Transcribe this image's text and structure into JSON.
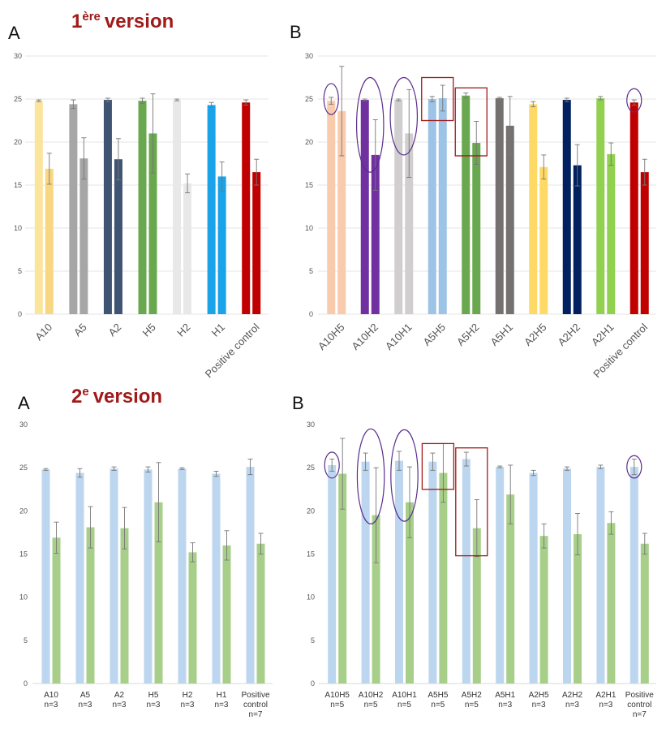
{
  "headings": {
    "v1": {
      "main": "1",
      "sup": "ère",
      "rest": "version"
    },
    "v2": {
      "main": "2",
      "sup": "e",
      "rest": "version"
    }
  },
  "colors": {
    "v2_first_bar": "#bcd6ef",
    "v2_second_bar": "#a8cf8a",
    "grid": "#e6e6e6",
    "errorbar": "#777777",
    "circle": "#5a2d8c",
    "rect": "#a01a1a",
    "heading": "#a01a1a"
  },
  "chart_data": [
    {
      "id": "v1A",
      "panel": "A",
      "type": "bar",
      "ylim": [
        0,
        30
      ],
      "yticks": [
        0,
        5,
        10,
        15,
        20,
        25,
        30
      ],
      "grid": true,
      "label_style": "rotated",
      "categories": [
        "A10",
        "A5",
        "A2",
        "H5",
        "H2",
        "H1",
        "Positive control"
      ],
      "series": [
        {
          "values": [
            24.8,
            24.4,
            24.9,
            24.8,
            24.9,
            24.3,
            24.6
          ],
          "errors": [
            0.1,
            0.5,
            0.2,
            0.3,
            0.1,
            0.3,
            0.3
          ]
        },
        {
          "values": [
            16.9,
            18.1,
            18.0,
            21.0,
            15.2,
            16.0,
            16.5
          ],
          "errors": [
            1.8,
            2.4,
            2.4,
            4.6,
            1.1,
            1.7,
            1.5
          ]
        }
      ],
      "bar_colors": [
        [
          "#fbe59c",
          "#f7d782"
        ],
        [
          "#a6a6a6",
          "#a6a6a6"
        ],
        [
          "#3f5372",
          "#3f5372"
        ],
        [
          "#6aa84f",
          "#6aa84f"
        ],
        [
          "#e8e8e8",
          "#e8e8e8"
        ],
        [
          "#1aa3e8",
          "#1aa3e8"
        ],
        [
          "#c00000",
          "#c00000"
        ]
      ],
      "annotations": []
    },
    {
      "id": "v1B",
      "panel": "B",
      "type": "bar",
      "ylim": [
        0,
        30
      ],
      "yticks": [
        0,
        5,
        10,
        15,
        20,
        25,
        30
      ],
      "grid": true,
      "label_style": "rotated",
      "categories": [
        "A10H5",
        "A10H2",
        "A10H1",
        "A5H5",
        "A5H2",
        "A5H1",
        "A2H5",
        "A2H2",
        "A2H1",
        "Positive control"
      ],
      "series": [
        {
          "values": [
            24.8,
            24.9,
            24.9,
            25.0,
            25.4,
            25.1,
            24.4,
            24.9,
            25.1,
            24.6
          ],
          "errors": [
            0.4,
            0.1,
            0.1,
            0.3,
            0.3,
            0.1,
            0.3,
            0.2,
            0.2,
            0.3
          ]
        },
        {
          "values": [
            23.6,
            18.5,
            21.0,
            25.1,
            19.9,
            21.9,
            17.1,
            17.3,
            18.6,
            16.5
          ],
          "errors": [
            5.2,
            4.1,
            5.1,
            1.5,
            2.5,
            3.4,
            1.4,
            2.4,
            1.3,
            1.5
          ]
        }
      ],
      "bar_colors": [
        [
          "#f8cbad",
          "#f8cbad"
        ],
        [
          "#7030a0",
          "#7030a0"
        ],
        [
          "#d0cece",
          "#d0cece"
        ],
        [
          "#9dc3e6",
          "#9dc3e6"
        ],
        [
          "#6aa84f",
          "#6aa84f"
        ],
        [
          "#767171",
          "#767171"
        ],
        [
          "#ffd966",
          "#ffd966"
        ],
        [
          "#002060",
          "#002060"
        ],
        [
          "#92d050",
          "#92d050"
        ],
        [
          "#c00000",
          "#c00000"
        ]
      ],
      "annotations": [
        {
          "shape": "circle",
          "category": 0,
          "bar": "first",
          "y_low": 23.2,
          "y_high": 26.8,
          "scale": 0.9
        },
        {
          "shape": "circle",
          "category": 1,
          "bar": "pair",
          "y_low": 16.5,
          "y_high": 27.5,
          "scale": 1.0
        },
        {
          "shape": "circle",
          "category": 2,
          "bar": "pair",
          "y_low": 18.5,
          "y_high": 27.5,
          "scale": 1.0
        },
        {
          "shape": "rect",
          "category": 3,
          "bar": "pair",
          "y_low": 22.5,
          "y_high": 27.5
        },
        {
          "shape": "rect",
          "category": 4,
          "bar": "pair",
          "y_low": 18.4,
          "y_high": 26.3
        },
        {
          "shape": "circle",
          "category": 9,
          "bar": "first",
          "y_low": 23.5,
          "y_high": 26.2,
          "scale": 0.9
        }
      ]
    },
    {
      "id": "v2A",
      "panel": "A",
      "type": "bar",
      "ylim": [
        0,
        30
      ],
      "yticks": [
        0,
        5,
        10,
        15,
        20,
        25,
        30
      ],
      "grid": false,
      "label_style": "twoline",
      "categories": [
        "A10",
        "A5",
        "A2",
        "H5",
        "H2",
        "H1",
        "Positive control"
      ],
      "category_lines": [
        [
          "A10",
          "n=3"
        ],
        [
          "A5",
          "n=3"
        ],
        [
          "A2",
          "n=3"
        ],
        [
          "H5",
          "n=3"
        ],
        [
          "H2",
          "n=3"
        ],
        [
          "H1",
          "n=3"
        ],
        [
          "Positive",
          "control",
          "n=7"
        ]
      ],
      "series": [
        {
          "values": [
            24.8,
            24.4,
            24.9,
            24.8,
            24.9,
            24.3,
            25.1
          ],
          "errors": [
            0.1,
            0.5,
            0.2,
            0.3,
            0.1,
            0.3,
            0.9
          ]
        },
        {
          "values": [
            16.9,
            18.1,
            18.0,
            21.0,
            15.2,
            16.0,
            16.2
          ],
          "errors": [
            1.8,
            2.4,
            2.4,
            4.6,
            1.1,
            1.7,
            1.2
          ]
        }
      ],
      "annotations": []
    },
    {
      "id": "v2B",
      "panel": "B",
      "type": "bar",
      "ylim": [
        0,
        30
      ],
      "yticks": [
        0,
        5,
        10,
        15,
        20,
        25,
        30
      ],
      "grid": false,
      "label_style": "twoline",
      "categories": [
        "A10H5",
        "A10H2",
        "A10H1",
        "A5H5",
        "A5H2",
        "A5H1",
        "A2H5",
        "A2H2",
        "A2H1",
        "Positive control"
      ],
      "category_lines": [
        [
          "A10H5",
          "n=5"
        ],
        [
          "A10H2",
          "n=5"
        ],
        [
          "A10H1",
          "n=5"
        ],
        [
          "A5H5",
          "n=5"
        ],
        [
          "A5H2",
          "n=5"
        ],
        [
          "A5H1",
          "n=3"
        ],
        [
          "A2H5",
          "n=3"
        ],
        [
          "A2H2",
          "n=3"
        ],
        [
          "A2H1",
          "n=3"
        ],
        [
          "Positive",
          "control",
          "n=7"
        ]
      ],
      "series": [
        {
          "values": [
            25.3,
            25.7,
            25.8,
            25.7,
            26.0,
            25.1,
            24.4,
            24.9,
            25.1,
            25.1
          ],
          "errors": [
            0.7,
            1.0,
            1.1,
            1.0,
            0.8,
            0.1,
            0.3,
            0.2,
            0.2,
            0.9
          ]
        },
        {
          "values": [
            24.3,
            19.5,
            21.0,
            24.4,
            18.0,
            21.9,
            17.1,
            17.3,
            18.6,
            16.2
          ],
          "errors": [
            4.1,
            5.5,
            4.1,
            3.4,
            3.3,
            3.4,
            1.4,
            2.4,
            1.3,
            1.2
          ]
        }
      ],
      "annotations": [
        {
          "shape": "circle",
          "category": 0,
          "bar": "first",
          "y_low": 23.8,
          "y_high": 26.8,
          "scale": 0.9
        },
        {
          "shape": "circle",
          "category": 1,
          "bar": "pair",
          "y_low": 18.5,
          "y_high": 29.5,
          "scale": 1.0
        },
        {
          "shape": "circle",
          "category": 2,
          "bar": "pair",
          "y_low": 18.8,
          "y_high": 29.4,
          "scale": 1.0
        },
        {
          "shape": "rect",
          "category": 3,
          "bar": "pair",
          "y_low": 22.5,
          "y_high": 27.8
        },
        {
          "shape": "rect",
          "category": 4,
          "bar": "pair",
          "y_low": 14.8,
          "y_high": 27.3
        },
        {
          "shape": "circle",
          "category": 9,
          "bar": "first",
          "y_low": 23.8,
          "y_high": 26.4,
          "scale": 0.9
        }
      ]
    }
  ]
}
